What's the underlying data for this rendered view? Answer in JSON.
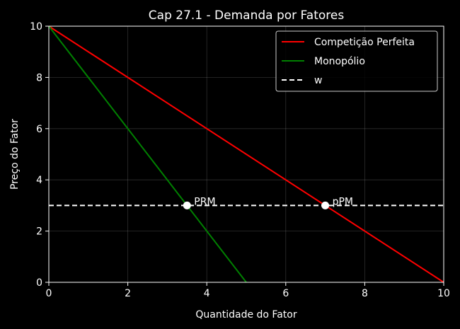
{
  "chart_data": {
    "type": "line",
    "title": "Cap 27.1 - Demanda por Fatores",
    "xlabel": "Quantidade do Fator",
    "ylabel": "Preço do Fator",
    "xlim": [
      0,
      10
    ],
    "ylim": [
      0,
      10
    ],
    "xticks": [
      0,
      2,
      4,
      6,
      8,
      10
    ],
    "yticks": [
      0,
      2,
      4,
      6,
      8,
      10
    ],
    "grid": true,
    "legend_position": "top-right",
    "background": "#000000",
    "series": [
      {
        "name": "Competição Perfeita",
        "color": "#ff0000",
        "style": "solid",
        "x": [
          0,
          10
        ],
        "y": [
          10,
          0
        ]
      },
      {
        "name": "Monopólio",
        "color": "#008000",
        "style": "solid",
        "x": [
          0,
          5
        ],
        "y": [
          10,
          0
        ]
      },
      {
        "name": "w",
        "color": "#ffffff",
        "style": "dashed",
        "x": [
          0,
          10
        ],
        "y": [
          3,
          3
        ]
      }
    ],
    "points": [
      {
        "label": "PRM",
        "x": 3.5,
        "y": 3
      },
      {
        "label": "pPM",
        "x": 7,
        "y": 3
      }
    ]
  }
}
